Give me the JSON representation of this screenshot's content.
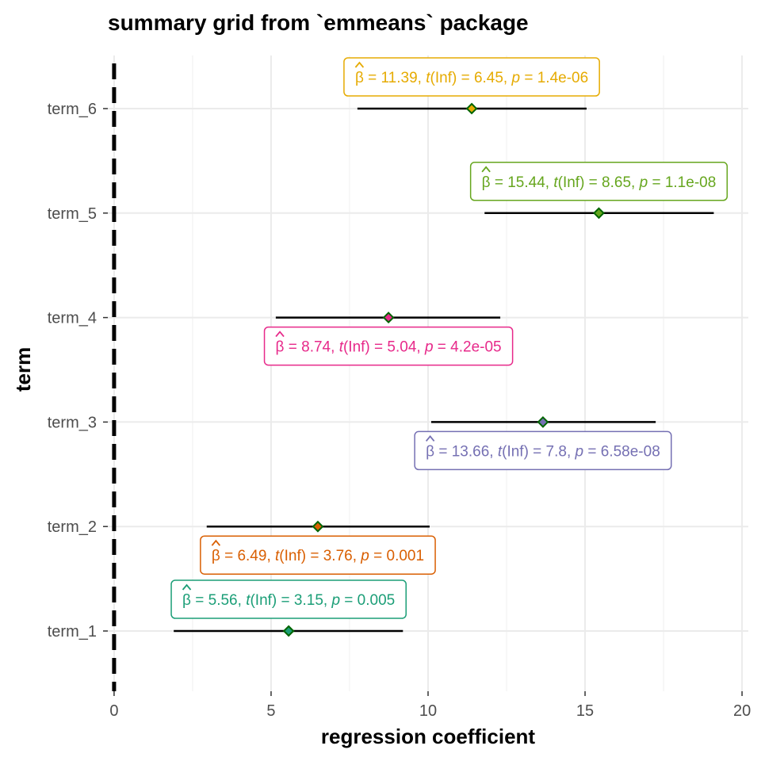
{
  "chart_data": {
    "type": "scatter",
    "title": "summary grid from `emmeans` package",
    "xlabel": "regression coefficient",
    "ylabel": "term",
    "xlim": [
      -0.2,
      20.2
    ],
    "xticks": [
      0,
      5,
      10,
      15,
      20
    ],
    "reference_line": {
      "x": 0,
      "style": "dashed"
    },
    "grid": true,
    "points": [
      {
        "term": "term_1",
        "estimate": 5.56,
        "conf_low": 1.9,
        "conf_high": 9.2,
        "t_df": "Inf",
        "statistic": "3.15",
        "p": "0.005",
        "estimate_label": "5.56",
        "color": "#1B9E77",
        "label_pos": "above"
      },
      {
        "term": "term_2",
        "estimate": 6.49,
        "conf_low": 2.95,
        "conf_high": 10.05,
        "t_df": "Inf",
        "statistic": "3.76",
        "p": "0.001",
        "estimate_label": "6.49",
        "color": "#D95F02",
        "label_pos": "below"
      },
      {
        "term": "term_3",
        "estimate": 13.66,
        "conf_low": 10.1,
        "conf_high": 17.25,
        "t_df": "Inf",
        "statistic": "7.8",
        "p": "6.58e-08",
        "estimate_label": "13.66",
        "color": "#7570B3",
        "label_pos": "below"
      },
      {
        "term": "term_4",
        "estimate": 8.74,
        "conf_low": 5.15,
        "conf_high": 12.3,
        "t_df": "Inf",
        "statistic": "5.04",
        "p": "4.2e-05",
        "estimate_label": "8.74",
        "color": "#E7298A",
        "label_pos": "below"
      },
      {
        "term": "term_5",
        "estimate": 15.44,
        "conf_low": 11.8,
        "conf_high": 19.1,
        "t_df": "Inf",
        "statistic": "8.65",
        "p": "1.1e-08",
        "estimate_label": "15.44",
        "color": "#66A61E",
        "label_pos": "above"
      },
      {
        "term": "term_6",
        "estimate": 11.39,
        "conf_low": 7.75,
        "conf_high": 15.05,
        "t_df": "Inf",
        "statistic": "6.45",
        "p": "1.4e-06",
        "estimate_label": "11.39",
        "color": "#E6AB02",
        "label_pos": "above"
      }
    ],
    "colors": {
      "errorbar": "#000000",
      "point": "#006400",
      "grid": "#ebebeb",
      "tick_text": "#4d4d4d"
    }
  }
}
